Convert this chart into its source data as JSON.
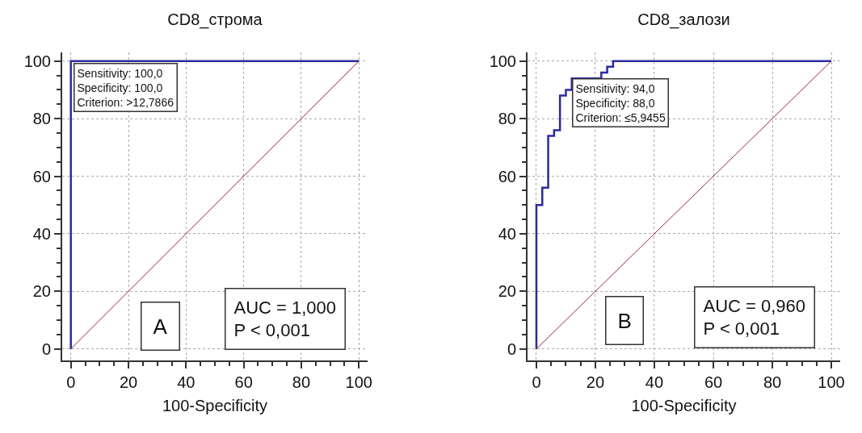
{
  "chart_data": [
    {
      "type": "line",
      "title": "CD8_строма",
      "xlabel": "100-Specificity",
      "xlim": [
        -3,
        103
      ],
      "ylim": [
        -4,
        103
      ],
      "xticks": [
        0,
        20,
        40,
        60,
        80,
        100
      ],
      "yticks": [
        0,
        20,
        40,
        60,
        80,
        100
      ],
      "grid": true,
      "series": [
        {
          "color": "#2b2ba0",
          "x": [
            0,
            0,
            100
          ],
          "values": [
            0,
            100,
            100
          ]
        },
        {
          "color": "#a02838",
          "x": [
            0,
            100
          ],
          "values": [
            0,
            100
          ]
        }
      ],
      "annotations": [
        "Sensitivity: 100,0\nSpecificity: 100,0\nCriterion: >12,7866",
        "A",
        "AUC = 1,000\nP < 0,001"
      ]
    },
    {
      "type": "line",
      "title": "CD8_залози",
      "xlabel": "100-Specificity",
      "xlim": [
        -3,
        103
      ],
      "ylim": [
        -4,
        103
      ],
      "xticks": [
        0,
        20,
        40,
        60,
        80,
        100
      ],
      "yticks": [
        0,
        20,
        40,
        60,
        80,
        100
      ],
      "grid": true,
      "series": [
        {
          "color": "#2b2ba0",
          "x": [
            0,
            0,
            2,
            2,
            4,
            4,
            6,
            6,
            8,
            8,
            10,
            10,
            12,
            12,
            22,
            22,
            24,
            24,
            26,
            26,
            100
          ],
          "values": [
            0,
            50,
            50,
            56,
            56,
            74,
            74,
            76,
            76,
            88,
            88,
            90,
            90,
            94,
            94,
            96,
            96,
            98,
            98,
            100,
            100
          ]
        },
        {
          "color": "#a02838",
          "x": [
            0,
            100
          ],
          "values": [
            0,
            100
          ]
        }
      ],
      "annotations": [
        "Sensitivity: 94,0\nSpecificity: 88,0\nCriterion: ≤5,9455",
        "B",
        "AUC = 0,960\nP < 0,001"
      ]
    }
  ]
}
